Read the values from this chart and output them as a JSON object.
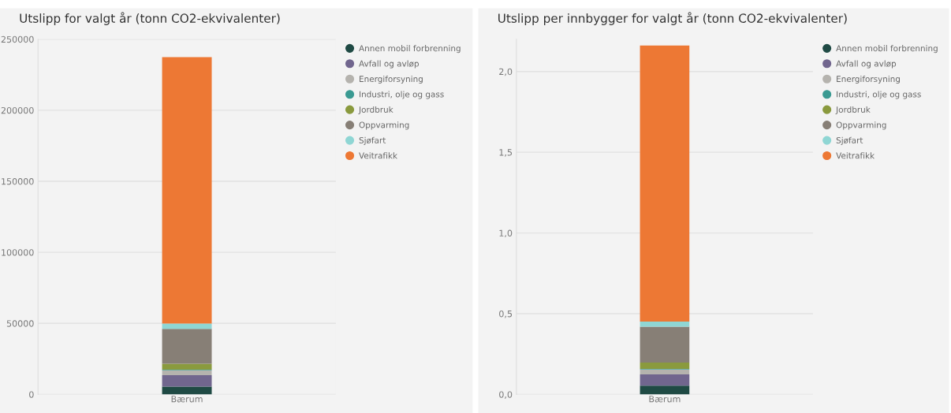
{
  "chart_data": [
    {
      "type": "bar",
      "stacked": true,
      "title": "Utslipp for valgt år (tonn CO2-ekvivalenter)",
      "categories": [
        "Bærum"
      ],
      "series": [
        {
          "name": "Annen mobil forbrenning",
          "color": "#1f4a44",
          "values": [
            5500
          ]
        },
        {
          "name": "Avfall og avløp",
          "color": "#71668e",
          "values": [
            8000
          ]
        },
        {
          "name": "Energiforsyning",
          "color": "#b5b3ae",
          "values": [
            3500
          ]
        },
        {
          "name": "Industri, olje og gass",
          "color": "#3a9a92",
          "values": [
            400
          ]
        },
        {
          "name": "Jordbruk",
          "color": "#8a9a3e",
          "values": [
            4200
          ]
        },
        {
          "name": "Oppvarming",
          "color": "#877f76",
          "values": [
            24600
          ]
        },
        {
          "name": "Sjøfart",
          "color": "#8fd6d4",
          "values": [
            3700
          ]
        },
        {
          "name": "Veitrafikk",
          "color": "#ed7834",
          "values": [
            187500
          ]
        }
      ],
      "ylim": [
        0,
        250000
      ],
      "yticks": [
        0,
        50000,
        100000,
        150000,
        200000,
        250000
      ],
      "grid": "y",
      "legend": "top right"
    },
    {
      "type": "bar",
      "stacked": true,
      "title": "Utslipp per innbygger for valgt år (tonn CO2-ekvivalenter)",
      "categories": [
        "Bærum"
      ],
      "series": [
        {
          "name": "Annen mobil forbrenning",
          "color": "#1f4a44",
          "values": [
            0.054
          ]
        },
        {
          "name": "Avfall og avløp",
          "color": "#71668e",
          "values": [
            0.07
          ]
        },
        {
          "name": "Energiforsyning",
          "color": "#b5b3ae",
          "values": [
            0.031
          ]
        },
        {
          "name": "Industri, olje og gass",
          "color": "#3a9a92",
          "values": [
            0.003
          ]
        },
        {
          "name": "Jordbruk",
          "color": "#8a9a3e",
          "values": [
            0.039
          ]
        },
        {
          "name": "Oppvarming",
          "color": "#877f76",
          "values": [
            0.222
          ]
        },
        {
          "name": "Sjøfart",
          "color": "#8fd6d4",
          "values": [
            0.032
          ]
        },
        {
          "name": "Veitrafikk",
          "color": "#ed7834",
          "values": [
            1.71
          ]
        }
      ],
      "ylim": [
        0,
        2.2
      ],
      "yticks": [
        {
          "value": 0,
          "label": "0,0"
        },
        {
          "value": 0.5,
          "label": "0,5"
        },
        {
          "value": 1.0,
          "label": "1,0"
        },
        {
          "value": 1.5,
          "label": "1,5"
        },
        {
          "value": 2.0,
          "label": "2,0"
        }
      ],
      "grid": "y",
      "legend": "top right"
    }
  ]
}
